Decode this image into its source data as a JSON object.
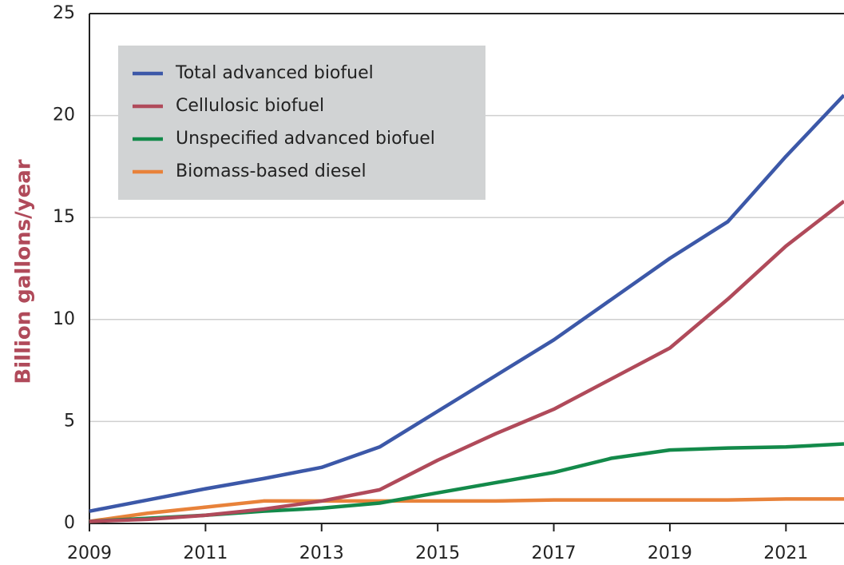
{
  "chart_data": {
    "type": "line",
    "y_label": "Billion gallons/year",
    "x": [
      2009,
      2010,
      2011,
      2012,
      2013,
      2014,
      2015,
      2016,
      2017,
      2018,
      2019,
      2020,
      2021,
      2022
    ],
    "series": [
      {
        "name": "Total advanced biofuel",
        "color": "#3c58a8",
        "values": [
          0.6,
          1.15,
          1.7,
          2.2,
          2.75,
          3.75,
          5.5,
          7.25,
          9.0,
          11.0,
          13.0,
          14.8,
          18.0,
          21.0
        ]
      },
      {
        "name": "Cellulosic biofuel",
        "color": "#b04a5a",
        "values": [
          0.1,
          0.2,
          0.4,
          0.7,
          1.1,
          1.65,
          3.1,
          4.4,
          5.6,
          7.1,
          8.6,
          11.0,
          13.6,
          15.8
        ]
      },
      {
        "name": "Unspecified advanced biofuel",
        "color": "#138a4a",
        "values": [
          0.1,
          0.25,
          0.4,
          0.6,
          0.75,
          1.0,
          1.5,
          2.0,
          2.5,
          3.2,
          3.6,
          3.7,
          3.75,
          3.9
        ]
      },
      {
        "name": "Biomass-based diesel",
        "color": "#e8823a",
        "values": [
          0.1,
          0.5,
          0.8,
          1.1,
          1.1,
          1.1,
          1.1,
          1.1,
          1.15,
          1.15,
          1.15,
          1.15,
          1.2,
          1.2
        ]
      }
    ],
    "xlim": [
      2009,
      2022
    ],
    "xticks": [
      2009,
      2011,
      2013,
      2015,
      2017,
      2019,
      2021
    ],
    "ylim": [
      0,
      25
    ],
    "yticks": [
      0,
      5,
      10,
      15,
      20,
      25
    ],
    "grid": true,
    "legend": "upper left"
  }
}
